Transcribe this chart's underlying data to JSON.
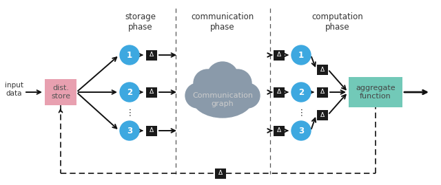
{
  "bg_color": "#ffffff",
  "title_storage": "storage\nphase",
  "title_comm": "communication\nphase",
  "title_comp": "computation\nphase",
  "input_label": "input\ndata",
  "dist_store_label": "dist.\nstore",
  "dist_store_color": "#e8a0b0",
  "aggregate_label": "aggregate\nfunction",
  "aggregate_color": "#72c9b8",
  "cloud_label": "Communication\ngraph",
  "cloud_color": "#8a9aaa",
  "node_color": "#3da8e0",
  "node_numbers": [
    "1",
    "2",
    "3"
  ],
  "delta_box_color": "#1a1a1a",
  "delta_char": "Δ",
  "dots": "⋯",
  "figsize": [
    6.4,
    2.69
  ],
  "dpi": 100
}
